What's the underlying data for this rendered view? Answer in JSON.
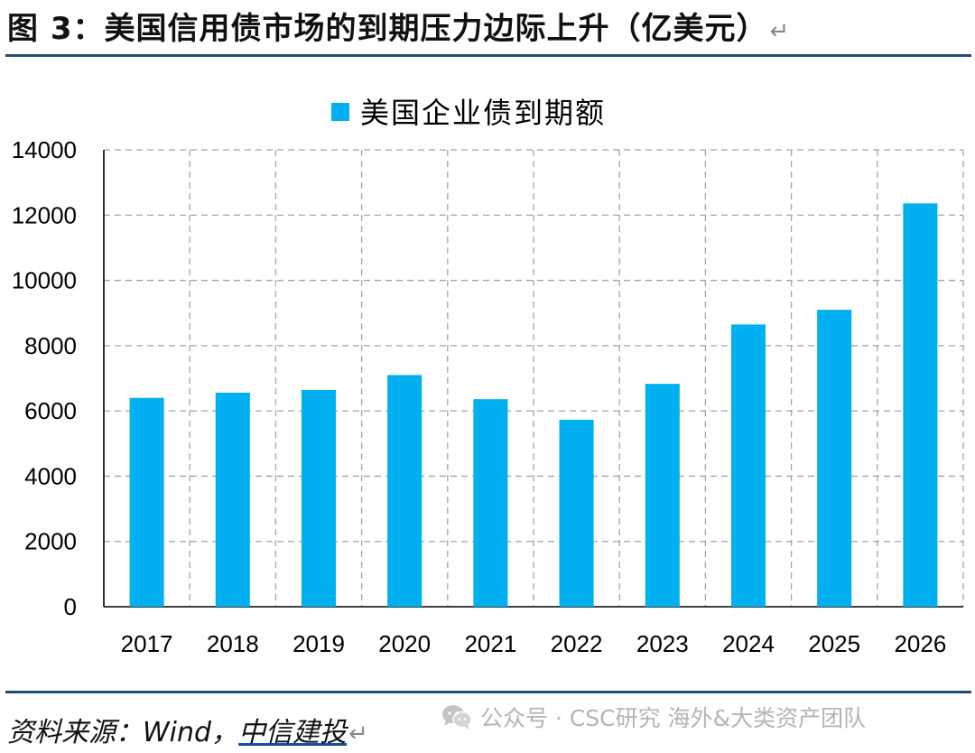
{
  "header": {
    "figure_title": "图 3：美国信用债市场的到期压力边际上升（亿美元）",
    "return_mark": "↵"
  },
  "chart_data": {
    "type": "bar",
    "categories": [
      "2017",
      "2018",
      "2019",
      "2020",
      "2021",
      "2022",
      "2023",
      "2024",
      "2025",
      "2026"
    ],
    "series": [
      {
        "name": "美国企业债到期额",
        "values": [
          6400,
          6560,
          6640,
          7100,
          6360,
          5730,
          6830,
          8650,
          9100,
          12360
        ],
        "color": "#00B0F0"
      }
    ],
    "ylim": [
      0,
      14000
    ],
    "yticks": [
      0,
      2000,
      4000,
      6000,
      8000,
      10000,
      12000,
      14000
    ],
    "grid": true,
    "grid_style": "dashed",
    "legend_position": "top-center"
  },
  "footer": {
    "source_prefix": "资料来源：Wind，",
    "source_brand": "中信建投",
    "return_mark": "↵",
    "watermark_text": "公众号 · CSC研究 海外&大类资产团队",
    "watermark_icon": "wechat-icon"
  }
}
